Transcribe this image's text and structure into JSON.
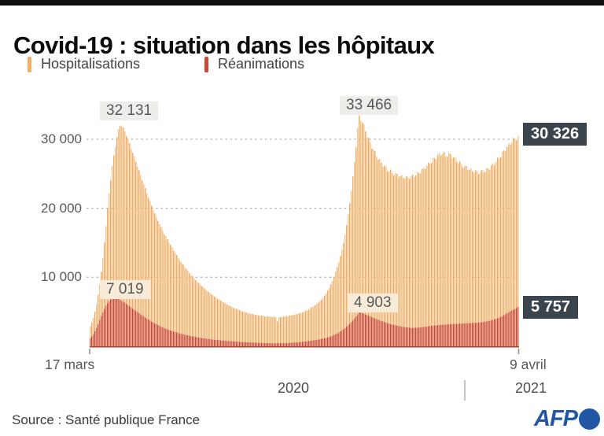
{
  "header": {
    "title": "Covid-19 : situation dans les hôpitaux"
  },
  "legend": [
    {
      "label": "Hospitalisations",
      "color": "#f2ae63"
    },
    {
      "label": "Réanimations",
      "color": "#cc4733"
    }
  ],
  "chart_data": {
    "type": "area",
    "title": "Covid-19 : situation dans les hôpitaux",
    "x_start_label": "17 mars",
    "x_end_label": "9 avril",
    "year_labels": [
      "2020",
      "2021"
    ],
    "days_total": 389,
    "ylim": [
      0,
      35000
    ],
    "grid": "dotted-horizontal",
    "yticks": [
      {
        "value": 30000,
        "label": "30 000"
      },
      {
        "value": 20000,
        "label": "20 000"
      },
      {
        "value": 10000,
        "label": "10 000"
      }
    ],
    "series": [
      {
        "name": "Hospitalisations",
        "color": "#f6c58a",
        "color_alt": "#edac67",
        "points": [
          [
            0,
            2600
          ],
          [
            3,
            3800
          ],
          [
            6,
            5600
          ],
          [
            9,
            8600
          ],
          [
            12,
            12500
          ],
          [
            15,
            17500
          ],
          [
            18,
            22500
          ],
          [
            21,
            26500
          ],
          [
            24,
            29500
          ],
          [
            26,
            31200
          ],
          [
            28,
            32131
          ],
          [
            31,
            31500
          ],
          [
            34,
            30400
          ],
          [
            38,
            28600
          ],
          [
            43,
            26300
          ],
          [
            48,
            24000
          ],
          [
            54,
            21300
          ],
          [
            60,
            18900
          ],
          [
            67,
            16500
          ],
          [
            74,
            14500
          ],
          [
            82,
            12400
          ],
          [
            90,
            10700
          ],
          [
            98,
            9300
          ],
          [
            106,
            8100
          ],
          [
            114,
            7100
          ],
          [
            122,
            6300
          ],
          [
            130,
            5600
          ],
          [
            138,
            5100
          ],
          [
            145,
            4750
          ],
          [
            152,
            4500
          ],
          [
            160,
            4320
          ],
          [
            168,
            4250
          ],
          [
            169.4,
            4200
          ],
          [
            170.1,
            3400
          ],
          [
            170.8,
            4200
          ],
          [
            176,
            4300
          ],
          [
            184,
            4500
          ],
          [
            192,
            4850
          ],
          [
            198,
            5300
          ],
          [
            204,
            5900
          ],
          [
            210,
            6700
          ],
          [
            215,
            7800
          ],
          [
            220,
            9400
          ],
          [
            225,
            11700
          ],
          [
            230,
            14800
          ],
          [
            234,
            18500
          ],
          [
            238,
            23500
          ],
          [
            241,
            28000
          ],
          [
            244,
            33466
          ],
          [
            247,
            32600
          ],
          [
            250,
            31200
          ],
          [
            254,
            29500
          ],
          [
            259,
            27900
          ],
          [
            264,
            26600
          ],
          [
            270,
            25600
          ],
          [
            276,
            25000
          ],
          [
            282,
            24600
          ],
          [
            288,
            24400
          ],
          [
            294,
            24700
          ],
          [
            300,
            25300
          ],
          [
            306,
            26200
          ],
          [
            312,
            27100
          ],
          [
            317,
            27800
          ],
          [
            320,
            28000
          ],
          [
            323,
            27600
          ],
          [
            326,
            27850
          ],
          [
            330,
            27300
          ],
          [
            335,
            26600
          ],
          [
            340,
            26000
          ],
          [
            346,
            25500
          ],
          [
            352,
            25200
          ],
          [
            358,
            25400
          ],
          [
            363,
            25900
          ],
          [
            368,
            26700
          ],
          [
            373,
            27700
          ],
          [
            378,
            28800
          ],
          [
            382,
            29600
          ],
          [
            386,
            30100
          ],
          [
            389,
            30326
          ]
        ],
        "peak_labels": {
          "wave1": "32 131",
          "wave2": "33 466",
          "latest": "30 326"
        }
      },
      {
        "name": "Réanimations",
        "color": "#dd6349",
        "color_alt": "#c04832",
        "points": [
          [
            0,
            1000
          ],
          [
            3,
            1600
          ],
          [
            6,
            2500
          ],
          [
            9,
            3700
          ],
          [
            12,
            4900
          ],
          [
            15,
            5900
          ],
          [
            18,
            6600
          ],
          [
            20,
            6900
          ],
          [
            22,
            7019
          ],
          [
            25,
            6950
          ],
          [
            28,
            6700
          ],
          [
            32,
            6300
          ],
          [
            37,
            5700
          ],
          [
            43,
            5000
          ],
          [
            50,
            4200
          ],
          [
            57,
            3500
          ],
          [
            65,
            2800
          ],
          [
            73,
            2300
          ],
          [
            82,
            1850
          ],
          [
            91,
            1500
          ],
          [
            100,
            1220
          ],
          [
            110,
            1000
          ],
          [
            120,
            830
          ],
          [
            130,
            700
          ],
          [
            140,
            600
          ],
          [
            150,
            520
          ],
          [
            160,
            460
          ],
          [
            168,
            430
          ],
          [
            176,
            450
          ],
          [
            184,
            520
          ],
          [
            192,
            620
          ],
          [
            200,
            780
          ],
          [
            207,
            950
          ],
          [
            213,
            1150
          ],
          [
            219,
            1450
          ],
          [
            225,
            1900
          ],
          [
            230,
            2450
          ],
          [
            235,
            3100
          ],
          [
            239,
            3800
          ],
          [
            242,
            4400
          ],
          [
            244,
            4903
          ],
          [
            247,
            4800
          ],
          [
            251,
            4550
          ],
          [
            256,
            4200
          ],
          [
            262,
            3800
          ],
          [
            268,
            3450
          ],
          [
            274,
            3150
          ],
          [
            280,
            2950
          ],
          [
            286,
            2750
          ],
          [
            292,
            2650
          ],
          [
            298,
            2700
          ],
          [
            305,
            2850
          ],
          [
            312,
            3000
          ],
          [
            320,
            3100
          ],
          [
            328,
            3200
          ],
          [
            336,
            3280
          ],
          [
            344,
            3350
          ],
          [
            352,
            3420
          ],
          [
            358,
            3550
          ],
          [
            364,
            3750
          ],
          [
            370,
            4050
          ],
          [
            375,
            4450
          ],
          [
            380,
            4950
          ],
          [
            384,
            5300
          ],
          [
            387,
            5550
          ],
          [
            389,
            5757
          ]
        ],
        "peak_labels": {
          "wave1": "7 019",
          "wave2": "4 903",
          "latest": "5 757"
        }
      }
    ],
    "annotations": {
      "hosp_peak1": "32 131",
      "hosp_peak2": "33 466",
      "hosp_last": "30 326",
      "rea_peak1": "7 019",
      "rea_peak2": "4 903",
      "rea_last": "5 757"
    }
  },
  "footer": {
    "source": "Source : Santé publique France",
    "afp": "AFP"
  }
}
